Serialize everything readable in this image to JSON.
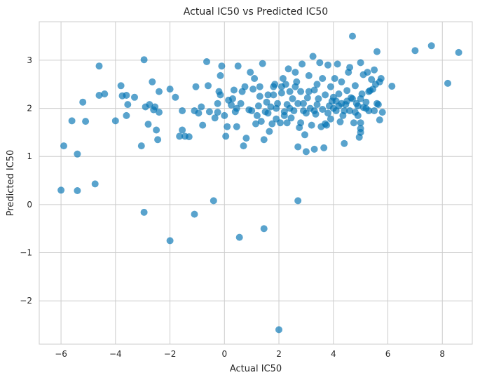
{
  "chart_data": {
    "type": "scatter",
    "title": "Actual IC50 vs Predicted IC50",
    "xlabel": "Actual IC50",
    "ylabel": "Predicted IC50",
    "xlim": [
      -6.8,
      9.1
    ],
    "ylim": [
      -2.9,
      3.8
    ],
    "xticks": [
      -6,
      -4,
      -2,
      0,
      2,
      4,
      6,
      8
    ],
    "yticks": [
      -2,
      -1,
      0,
      1,
      2,
      3
    ],
    "grid": true,
    "color": "#0072b2",
    "points": [
      [
        -6.0,
        0.3
      ],
      [
        -5.9,
        1.22
      ],
      [
        -5.6,
        1.74
      ],
      [
        -5.4,
        1.05
      ],
      [
        -5.4,
        0.29
      ],
      [
        -5.2,
        2.13
      ],
      [
        -5.1,
        1.73
      ],
      [
        -4.75,
        0.43
      ],
      [
        -4.6,
        2.88
      ],
      [
        -4.6,
        2.27
      ],
      [
        -4.4,
        2.3
      ],
      [
        -4.0,
        1.74
      ],
      [
        -3.8,
        2.47
      ],
      [
        -3.75,
        2.26
      ],
      [
        -3.6,
        2.27
      ],
      [
        -3.6,
        1.85
      ],
      [
        -3.55,
        2.08
      ],
      [
        -3.3,
        2.23
      ],
      [
        -3.05,
        1.22
      ],
      [
        -2.95,
        3.01
      ],
      [
        -2.95,
        -0.16
      ],
      [
        -2.9,
        2.03
      ],
      [
        -2.8,
        1.67
      ],
      [
        -2.75,
        2.08
      ],
      [
        -2.65,
        2.55
      ],
      [
        -2.6,
        1.97
      ],
      [
        -2.55,
        2.03
      ],
      [
        -2.5,
        1.55
      ],
      [
        -2.45,
        1.35
      ],
      [
        -2.4,
        2.35
      ],
      [
        -2.4,
        1.92
      ],
      [
        -2.0,
        2.4
      ],
      [
        -2.0,
        -0.75
      ],
      [
        -1.8,
        2.23
      ],
      [
        -1.65,
        1.42
      ],
      [
        -1.55,
        1.55
      ],
      [
        -1.55,
        1.95
      ],
      [
        -1.45,
        1.42
      ],
      [
        -1.3,
        1.41
      ],
      [
        -1.1,
        1.95
      ],
      [
        -1.1,
        -0.2
      ],
      [
        -1.05,
        2.45
      ],
      [
        -0.95,
        1.9
      ],
      [
        -0.85,
        2.03
      ],
      [
        -0.8,
        1.65
      ],
      [
        -0.65,
        2.97
      ],
      [
        -0.6,
        2.47
      ],
      [
        -0.55,
        1.93
      ],
      [
        -0.4,
        0.08
      ],
      [
        -0.35,
        1.8
      ],
      [
        -0.25,
        1.92
      ],
      [
        -0.25,
        2.1
      ],
      [
        -0.2,
        2.35
      ],
      [
        -0.15,
        2.28
      ],
      [
        -0.15,
        2.68
      ],
      [
        -0.1,
        2.88
      ],
      [
        0.0,
        1.85
      ],
      [
        0.05,
        1.42
      ],
      [
        0.1,
        1.62
      ],
      [
        0.15,
        2.17
      ],
      [
        0.25,
        2.07
      ],
      [
        0.3,
        2.2
      ],
      [
        0.35,
        2.38
      ],
      [
        0.4,
        1.93
      ],
      [
        0.45,
        1.62
      ],
      [
        0.45,
        2.0
      ],
      [
        0.5,
        2.88
      ],
      [
        0.55,
        -0.68
      ],
      [
        0.6,
        2.1
      ],
      [
        0.65,
        2.35
      ],
      [
        0.7,
        1.22
      ],
      [
        0.75,
        2.45
      ],
      [
        0.8,
        1.38
      ],
      [
        0.9,
        1.97
      ],
      [
        0.95,
        2.75
      ],
      [
        1.0,
        1.95
      ],
      [
        1.05,
        2.4
      ],
      [
        1.1,
        2.62
      ],
      [
        1.15,
        1.68
      ],
      [
        1.2,
        1.85
      ],
      [
        1.25,
        2.05
      ],
      [
        1.3,
        2.25
      ],
      [
        1.35,
        1.73
      ],
      [
        1.4,
        2.93
      ],
      [
        1.45,
        1.35
      ],
      [
        1.45,
        -0.5
      ],
      [
        1.5,
        1.93
      ],
      [
        1.55,
        2.13
      ],
      [
        1.6,
        2.28
      ],
      [
        1.65,
        1.52
      ],
      [
        1.7,
        2.03
      ],
      [
        1.75,
        1.68
      ],
      [
        1.8,
        2.28
      ],
      [
        1.85,
        2.5
      ],
      [
        1.9,
        1.78
      ],
      [
        1.95,
        2.1
      ],
      [
        2.0,
        -2.6
      ],
      [
        2.05,
        1.7
      ],
      [
        2.1,
        2.32
      ],
      [
        2.15,
        2.62
      ],
      [
        2.2,
        1.93
      ],
      [
        2.25,
        2.5
      ],
      [
        2.3,
        2.08
      ],
      [
        2.35,
        2.82
      ],
      [
        2.4,
        2.35
      ],
      [
        2.45,
        1.8
      ],
      [
        2.5,
        2.2
      ],
      [
        2.55,
        1.95
      ],
      [
        2.6,
        2.75
      ],
      [
        2.65,
        2.55
      ],
      [
        2.7,
        0.08
      ],
      [
        2.7,
        1.2
      ],
      [
        2.75,
        1.6
      ],
      [
        2.8,
        2.35
      ],
      [
        2.85,
        2.92
      ],
      [
        2.9,
        1.95
      ],
      [
        2.95,
        1.45
      ],
      [
        3.0,
        1.1
      ],
      [
        3.05,
        2.22
      ],
      [
        3.1,
        2.68
      ],
      [
        3.15,
        2.0
      ],
      [
        3.2,
        1.65
      ],
      [
        3.25,
        3.08
      ],
      [
        3.3,
        1.15
      ],
      [
        3.35,
        1.88
      ],
      [
        3.4,
        2.5
      ],
      [
        3.45,
        2.2
      ],
      [
        3.5,
        2.95
      ],
      [
        3.55,
        1.62
      ],
      [
        3.6,
        1.98
      ],
      [
        3.65,
        1.18
      ],
      [
        3.7,
        2.28
      ],
      [
        3.75,
        1.65
      ],
      [
        3.8,
        2.9
      ],
      [
        3.85,
        2.05
      ],
      [
        3.9,
        1.78
      ],
      [
        3.95,
        2.15
      ],
      [
        4.0,
        2.23
      ],
      [
        4.05,
        2.62
      ],
      [
        4.1,
        1.95
      ],
      [
        4.15,
        2.92
      ],
      [
        4.2,
        2.3
      ],
      [
        4.25,
        1.72
      ],
      [
        4.3,
        2.55
      ],
      [
        4.35,
        1.85
      ],
      [
        4.4,
        1.27
      ],
      [
        4.45,
        2.08
      ],
      [
        4.5,
        2.37
      ],
      [
        4.55,
        2.75
      ],
      [
        4.6,
        1.95
      ],
      [
        4.65,
        2.22
      ],
      [
        4.7,
        3.5
      ],
      [
        4.75,
        1.7
      ],
      [
        4.8,
        2.47
      ],
      [
        4.85,
        2.1
      ],
      [
        4.9,
        1.85
      ],
      [
        4.95,
        1.4
      ],
      [
        5.0,
        2.95
      ],
      [
        5.0,
        1.58
      ],
      [
        5.05,
        2.3
      ],
      [
        5.1,
        2.02
      ],
      [
        5.2,
        2.13
      ],
      [
        5.25,
        2.75
      ],
      [
        5.3,
        1.95
      ],
      [
        5.35,
        2.37
      ],
      [
        5.4,
        2.6
      ],
      [
        5.45,
        2.4
      ],
      [
        5.5,
        2.8
      ],
      [
        5.55,
        2.5
      ],
      [
        5.6,
        3.18
      ],
      [
        5.65,
        2.08
      ],
      [
        5.7,
        1.76
      ],
      [
        5.75,
        2.62
      ],
      [
        5.8,
        1.92
      ],
      [
        6.15,
        2.46
      ],
      [
        7.0,
        3.2
      ],
      [
        7.6,
        3.3
      ],
      [
        8.2,
        2.52
      ],
      [
        8.6,
        3.16
      ],
      [
        1.3,
        2.45
      ],
      [
        1.8,
        2.45
      ],
      [
        2.1,
        2.45
      ],
      [
        2.3,
        1.7
      ],
      [
        2.6,
        2.45
      ],
      [
        2.9,
        2.1
      ],
      [
        3.1,
        2.35
      ],
      [
        3.3,
        2.38
      ],
      [
        3.4,
        2.08
      ],
      [
        3.6,
        2.62
      ],
      [
        3.8,
        1.9
      ],
      [
        4.0,
        2.0
      ],
      [
        4.2,
        2.05
      ],
      [
        4.4,
        1.95
      ],
      [
        4.5,
        2.15
      ],
      [
        4.7,
        2.2
      ],
      [
        4.8,
        1.92
      ],
      [
        5.0,
        1.7
      ],
      [
        5.0,
        2.2
      ],
      [
        5.0,
        1.5
      ],
      [
        5.1,
        2.7
      ],
      [
        5.3,
        2.35
      ],
      [
        5.6,
        2.1
      ],
      [
        5.7,
        2.55
      ],
      [
        1.6,
        1.9
      ],
      [
        1.9,
        2.0
      ],
      [
        2.2,
        1.85
      ],
      [
        2.4,
        2.0
      ],
      [
        2.7,
        2.1
      ],
      [
        2.8,
        1.7
      ],
      [
        3.0,
        1.9
      ],
      [
        3.3,
        1.95
      ],
      [
        3.7,
        1.68
      ],
      [
        3.9,
        2.45
      ],
      [
        4.1,
        2.15
      ],
      [
        4.3,
        2.1
      ],
      [
        4.6,
        2.85
      ],
      [
        4.9,
        2.05
      ],
      [
        5.2,
        2.0
      ],
      [
        5.5,
        1.95
      ]
    ]
  }
}
